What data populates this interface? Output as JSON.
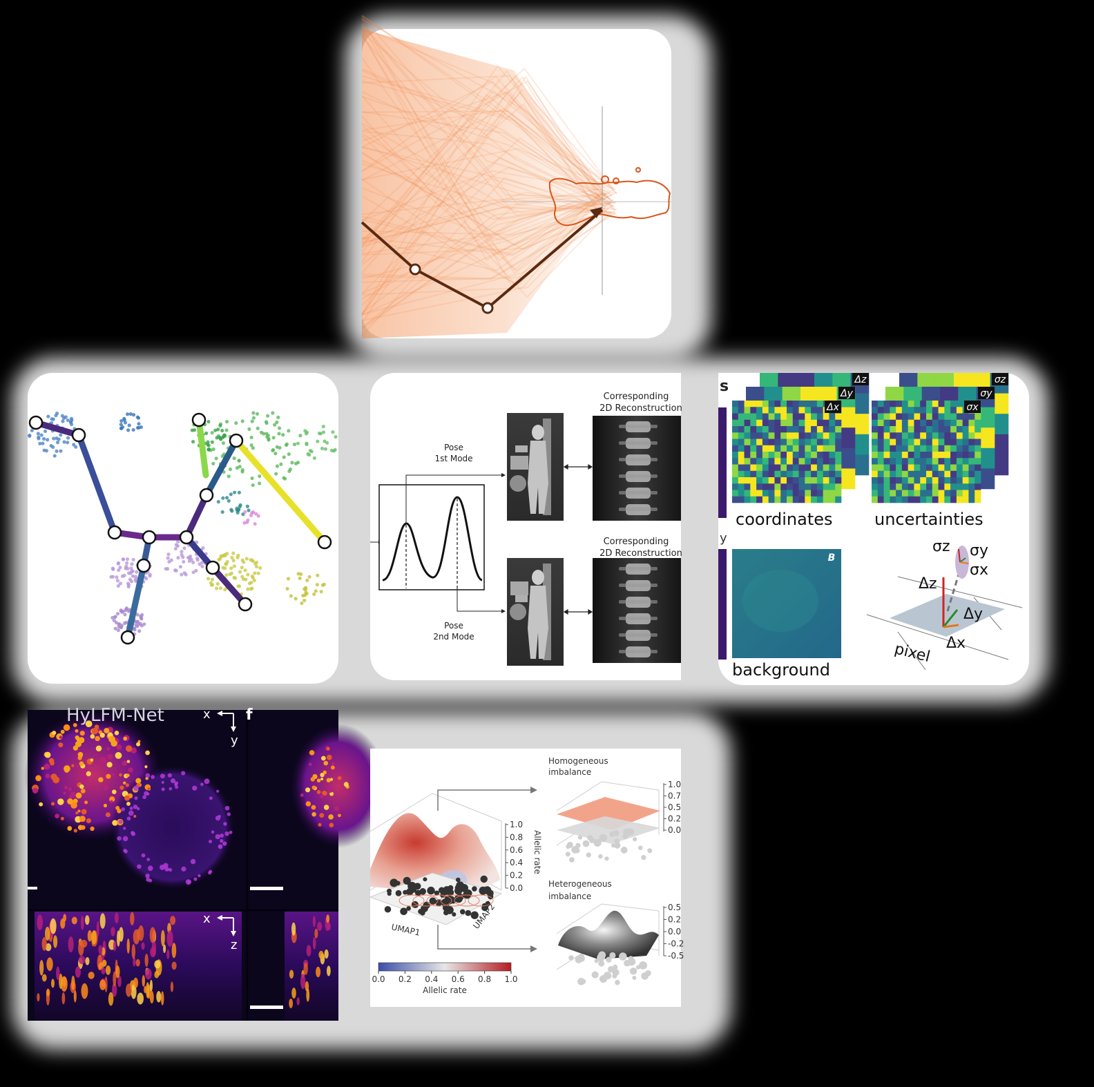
{
  "tiles": {
    "trajectory": {},
    "tree": {},
    "xray": {
      "title_line1": "Corresponding",
      "title_line2": "2D Reconstruction",
      "pose1_line1": "Pose",
      "pose1_line2": "1st Mode",
      "pose2_line1": "Pose",
      "pose2_line2": "2nd Mode"
    },
    "smlm": {
      "label_coordinates": "coordinates",
      "label_uncertainties": "uncertainties",
      "label_background": "background",
      "label_pixel": "pixel",
      "badge_dz": "Δz",
      "badge_dy": "Δy",
      "badge_dx": "Δx",
      "badge_sz": "σz",
      "badge_sy": "σy",
      "badge_sx": "σx",
      "badge_b": "B",
      "axis_dz": "Δz",
      "axis_dy": "Δy",
      "axis_dx": "Δx",
      "axis_sz": "σz",
      "axis_sy": "σy",
      "axis_sx": "σx"
    },
    "hylfm": {
      "title": "HyLFM-Net",
      "axis_x1": "x",
      "axis_y": "y",
      "panel_letter": "f",
      "axis_x2": "x",
      "axis_z": "z"
    },
    "allelic": {
      "homogeneous_line1": "Homogeneous",
      "homogeneous_line2": "imbalance",
      "heterogeneous_line1": "Heterogeneous",
      "heterogeneous_line2": "imbalance",
      "axis_umap1": "UMAP1",
      "axis_umap2": "UMAP2",
      "axis_allelic_rate": "Allelic rate",
      "z_ticks": [
        "1.0",
        "0.8",
        "0.6",
        "0.4",
        "0.2",
        "0.0"
      ],
      "homog_ticks": [
        "1.0",
        "0.7",
        "0.5",
        "0.2",
        "0.0"
      ],
      "hetero_ticks": [
        "0.5",
        "0.2",
        "0.0",
        "-0.2",
        "-0.5"
      ],
      "colorbar_ticks": [
        "0.0",
        "0.2",
        "0.4",
        "0.6",
        "0.8",
        "1.0"
      ],
      "colorbar_label": "Allelic rate"
    }
  },
  "colors": {
    "orange": "#f08a4b",
    "dark_path": "#5a2a12",
    "tree_purple": "#4b2a7a",
    "tree_lime": "#e5e22c",
    "inferno_hot": "#f7a21b"
  }
}
